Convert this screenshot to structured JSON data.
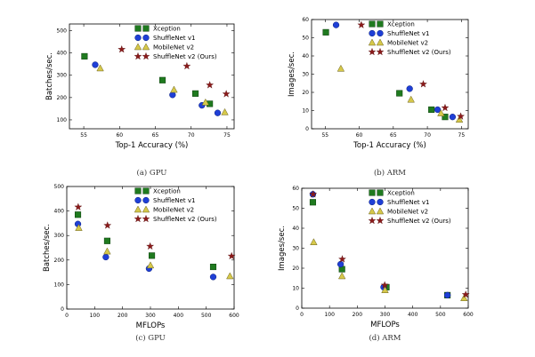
{
  "colors": {
    "xception": "#1f7a1f",
    "shufflenet_v1": "#1f3fd6",
    "mobilenet_v2": "#d6c84a",
    "shufflenet_v2": "#8b1a1a"
  },
  "legend": [
    "Xception",
    "ShuffleNet v1",
    "MobileNet v2",
    "ShuffleNet v2 (Ours)"
  ],
  "chart_data": [
    {
      "id": "a",
      "type": "scatter",
      "caption": "(a) GPU",
      "xlabel": "Top-1 Accuracy (%)",
      "ylabel": "Batches/sec.",
      "xlim": [
        53,
        76
      ],
      "ylim": [
        60,
        530
      ],
      "xticks": [
        55,
        60,
        65,
        70,
        75
      ],
      "yticks": [
        100,
        200,
        300,
        400,
        500
      ],
      "series": [
        {
          "name": "Xception",
          "marker": "square",
          "points": [
            [
              55.1,
              385
            ],
            [
              66.0,
              278
            ],
            [
              70.6,
              218
            ],
            [
              72.6,
              172
            ]
          ]
        },
        {
          "name": "ShuffleNet v1",
          "marker": "circle",
          "points": [
            [
              56.6,
              347
            ],
            [
              67.4,
              212
            ],
            [
              71.5,
              165
            ],
            [
              73.7,
              131
            ]
          ]
        },
        {
          "name": "MobileNet v2",
          "marker": "triangle",
          "points": [
            [
              57.3,
              331
            ],
            [
              67.6,
              235
            ],
            [
              72.0,
              178
            ],
            [
              74.7,
              134
            ]
          ]
        },
        {
          "name": "ShuffleNet v2 (Ours)",
          "marker": "star",
          "points": [
            [
              60.3,
              416
            ],
            [
              69.4,
              341
            ],
            [
              72.6,
              256
            ],
            [
              74.9,
              216
            ]
          ]
        }
      ]
    },
    {
      "id": "b",
      "type": "scatter",
      "caption": "(b) ARM",
      "xlabel": "Top-1 Accuracy (%)",
      "ylabel": "Images/sec.",
      "xlim": [
        53,
        76
      ],
      "ylim": [
        0,
        60
      ],
      "xticks": [
        55,
        60,
        65,
        70,
        75
      ],
      "yticks": [
        0,
        10,
        20,
        30,
        40,
        50,
        60
      ],
      "series": [
        {
          "name": "Xception",
          "marker": "square",
          "points": [
            [
              55.1,
              53
            ],
            [
              65.9,
              19.5
            ],
            [
              70.6,
              10.5
            ],
            [
              72.6,
              6.5
            ]
          ]
        },
        {
          "name": "ShuffleNet v1",
          "marker": "circle",
          "points": [
            [
              56.6,
              57
            ],
            [
              67.4,
              22
            ],
            [
              71.5,
              10.5
            ],
            [
              73.7,
              6.5
            ]
          ]
        },
        {
          "name": "MobileNet v2",
          "marker": "triangle",
          "points": [
            [
              57.3,
              33
            ],
            [
              67.6,
              16
            ],
            [
              72.0,
              8.5
            ],
            [
              74.7,
              5
            ]
          ]
        },
        {
          "name": "ShuffleNet v2 (Ours)",
          "marker": "star",
          "points": [
            [
              60.3,
              57
            ],
            [
              69.4,
              24.5
            ],
            [
              72.6,
              11.5
            ],
            [
              74.9,
              6.8
            ]
          ]
        }
      ]
    },
    {
      "id": "c",
      "type": "scatter",
      "caption": "(c) GPU",
      "xlabel": "MFLOPs",
      "ylabel": "Batches/sec.",
      "xlim": [
        0,
        600
      ],
      "ylim": [
        0,
        500
      ],
      "xticks": [
        0,
        100,
        200,
        300,
        400,
        500,
        600
      ],
      "yticks": [
        0,
        100,
        200,
        300,
        400,
        500
      ],
      "series": [
        {
          "name": "Xception",
          "marker": "square",
          "points": [
            [
              40,
              385
            ],
            [
              145,
              278
            ],
            [
              305,
              218
            ],
            [
              525,
              172
            ]
          ]
        },
        {
          "name": "ShuffleNet v1",
          "marker": "circle",
          "points": [
            [
              40,
              347
            ],
            [
              140,
              212
            ],
            [
              295,
              165
            ],
            [
              525,
              131
            ]
          ]
        },
        {
          "name": "MobileNet v2",
          "marker": "triangle",
          "points": [
            [
              43,
              331
            ],
            [
              145,
              235
            ],
            [
              300,
              178
            ],
            [
              585,
              134
            ]
          ]
        },
        {
          "name": "ShuffleNet v2 (Ours)",
          "marker": "star",
          "points": [
            [
              41,
              416
            ],
            [
              146,
              341
            ],
            [
              299,
              256
            ],
            [
              591,
              216
            ]
          ]
        }
      ]
    },
    {
      "id": "d",
      "type": "scatter",
      "caption": "(d) ARM",
      "xlabel": "MFLOPs",
      "ylabel": "Images/sec.",
      "xlim": [
        0,
        600
      ],
      "ylim": [
        0,
        60
      ],
      "xticks": [
        0,
        100,
        200,
        300,
        400,
        500,
        600
      ],
      "yticks": [
        0,
        10,
        20,
        30,
        40,
        50,
        60
      ],
      "series": [
        {
          "name": "Xception",
          "marker": "square",
          "points": [
            [
              40,
              53
            ],
            [
              145,
              19.5
            ],
            [
              305,
              10.5
            ],
            [
              525,
              6.5
            ]
          ]
        },
        {
          "name": "ShuffleNet v1",
          "marker": "circle",
          "points": [
            [
              40,
              57
            ],
            [
              140,
              22
            ],
            [
              295,
              10.5
            ],
            [
              525,
              6.5
            ]
          ]
        },
        {
          "name": "MobileNet v2",
          "marker": "triangle",
          "points": [
            [
              43,
              33
            ],
            [
              145,
              16
            ],
            [
              300,
              9
            ],
            [
              585,
              5
            ]
          ]
        },
        {
          "name": "ShuffleNet v2 (Ours)",
          "marker": "star",
          "points": [
            [
              41,
              57
            ],
            [
              146,
              24.5
            ],
            [
              299,
              11.5
            ],
            [
              591,
              6.8
            ]
          ]
        }
      ]
    }
  ]
}
